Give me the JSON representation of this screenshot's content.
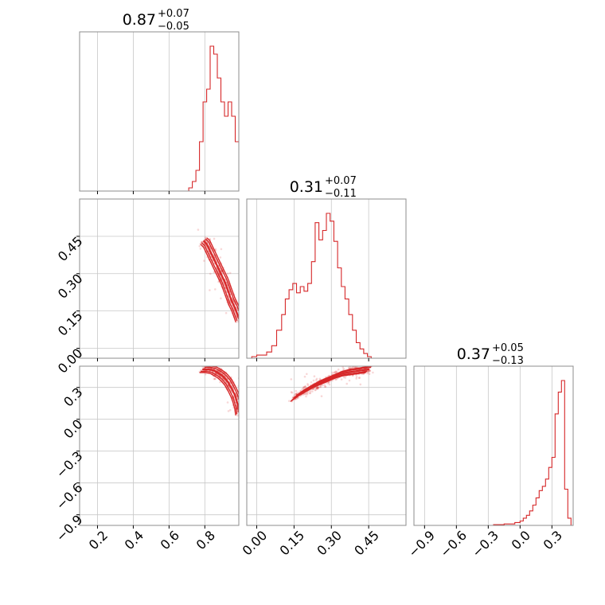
{
  "chart_data": {
    "type": "corner",
    "color": "#d62728",
    "params": [
      {
        "lo": 0.1,
        "hi": 0.99,
        "ticks": [
          0.2,
          0.4,
          0.6,
          0.8
        ],
        "tick_labels": [
          "0.2",
          "0.4",
          "0.6",
          "0.8"
        ]
      },
      {
        "lo": -0.04,
        "hi": 0.6,
        "ticks": [
          0.0,
          0.15,
          0.3,
          0.45
        ],
        "tick_labels": [
          "0.00",
          "0.15",
          "0.30",
          "0.45"
        ]
      },
      {
        "lo": -1.0,
        "hi": 0.5,
        "ticks": [
          -0.9,
          -0.6,
          -0.3,
          0.0,
          0.3
        ],
        "tick_labels": [
          "−0.9",
          "−0.6",
          "−0.3",
          "0.0",
          "0.3"
        ]
      }
    ],
    "titles": [
      {
        "median": "0.87",
        "plus": "+0.07",
        "minus": "−0.05"
      },
      {
        "median": "0.31",
        "plus": "+0.07",
        "minus": "−0.11"
      },
      {
        "median": "0.37",
        "plus": "+0.05",
        "minus": "−0.13"
      }
    ],
    "histograms": [
      {
        "param": 0,
        "bin_edges": [
          0.1,
          0.71,
          0.73,
          0.75,
          0.77,
          0.79,
          0.81,
          0.83,
          0.85,
          0.87,
          0.89,
          0.91,
          0.93,
          0.95,
          0.97,
          0.99
        ],
        "counts": [
          0,
          0.02,
          0.06,
          0.13,
          0.31,
          0.56,
          0.64,
          0.91,
          0.86,
          0.71,
          0.56,
          0.47,
          0.56,
          0.47,
          0.31
        ]
      },
      {
        "param": 1,
        "bin_edges": [
          -0.04,
          -0.02,
          0.0,
          0.02,
          0.04,
          0.06,
          0.08,
          0.1,
          0.115,
          0.13,
          0.145,
          0.16,
          0.175,
          0.19,
          0.205,
          0.22,
          0.235,
          0.25,
          0.265,
          0.28,
          0.295,
          0.31,
          0.325,
          0.34,
          0.355,
          0.37,
          0.385,
          0.4,
          0.415,
          0.43,
          0.445,
          0.46,
          0.48,
          0.5,
          0.53,
          0.6
        ],
        "counts": [
          0,
          0.01,
          0.02,
          0.02,
          0.04,
          0.08,
          0.18,
          0.28,
          0.38,
          0.44,
          0.48,
          0.42,
          0.46,
          0.43,
          0.48,
          0.62,
          0.87,
          0.76,
          0.82,
          0.93,
          0.88,
          0.75,
          0.58,
          0.46,
          0.38,
          0.28,
          0.18,
          0.1,
          0.06,
          0.03,
          0.01,
          0,
          0,
          0,
          0
        ]
      },
      {
        "param": 2,
        "bin_edges": [
          -1.0,
          -0.25,
          -0.2,
          -0.15,
          -0.1,
          -0.05,
          0.0,
          0.03,
          0.06,
          0.09,
          0.12,
          0.15,
          0.18,
          0.21,
          0.24,
          0.27,
          0.3,
          0.33,
          0.36,
          0.39,
          0.42,
          0.45,
          0.48,
          0.5
        ],
        "counts": [
          0,
          0.005,
          0.005,
          0.01,
          0.01,
          0.02,
          0.03,
          0.05,
          0.07,
          0.1,
          0.14,
          0.19,
          0.24,
          0.27,
          0.32,
          0.4,
          0.47,
          0.77,
          0.92,
          1.0,
          0.25,
          0.05,
          0
        ]
      }
    ],
    "scatter_panels": [
      {
        "x_param": 0,
        "y_param": 1,
        "x_curve": [
          0.795,
          0.81,
          0.83,
          0.85,
          0.87,
          0.89,
          0.91,
          0.93,
          0.95,
          0.97,
          0.99
        ],
        "y_curve": [
          0.43,
          0.42,
          0.39,
          0.36,
          0.33,
          0.3,
          0.27,
          0.23,
          0.19,
          0.16,
          0.12
        ]
      },
      {
        "x_param": 0,
        "y_param": 2,
        "x_curve": [
          0.79,
          0.82,
          0.85,
          0.87,
          0.89,
          0.91,
          0.93,
          0.95,
          0.97,
          0.985,
          0.99
        ],
        "y_curve": [
          0.47,
          0.47,
          0.46,
          0.44,
          0.42,
          0.39,
          0.35,
          0.29,
          0.22,
          0.13,
          0.07
        ]
      },
      {
        "x_param": 1,
        "y_param": 2,
        "x_curve": [
          0.15,
          0.18,
          0.21,
          0.24,
          0.27,
          0.3,
          0.33,
          0.36,
          0.39,
          0.42,
          0.45
        ],
        "y_curve": [
          0.2,
          0.25,
          0.29,
          0.33,
          0.36,
          0.39,
          0.42,
          0.44,
          0.45,
          0.46,
          0.47
        ]
      }
    ]
  }
}
